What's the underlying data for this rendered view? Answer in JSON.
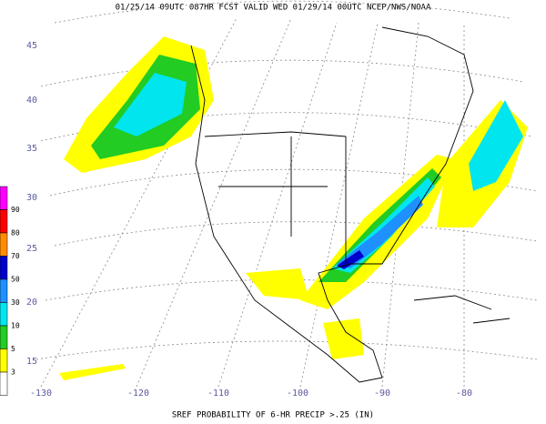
{
  "header": {
    "title": "01/25/14 09UTC  087HR  FCST VALID WED 01/29/14 00UTC  NCEP/NWS/NOAA"
  },
  "footer": {
    "caption": "SREF PROBABILITY OF 6-HR PRECIP >.25 (IN)"
  },
  "lat_labels": [
    "45",
    "40",
    "35",
    "30",
    "25",
    "20",
    "15"
  ],
  "lon_labels": [
    "-130",
    "-120",
    "-110",
    "-100",
    "-90",
    "-80"
  ],
  "colorbar": {
    "labels": [
      "90",
      "80",
      "70",
      "50",
      "30",
      "10",
      "5",
      "3"
    ],
    "colors": [
      "#ff00ff",
      "#ff0000",
      "#ff8c00",
      "#0000cc",
      "#1e90ff",
      "#00e5ee",
      "#22cc22",
      "#ffff00",
      "#ffffff"
    ]
  }
}
